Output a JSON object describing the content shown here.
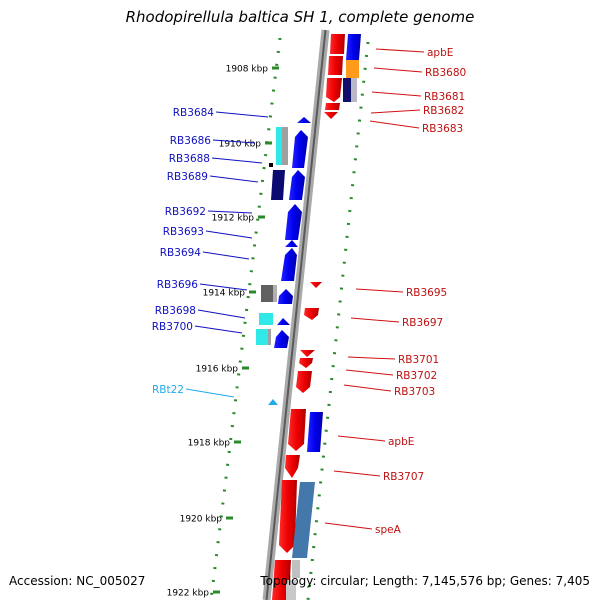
{
  "title": "Rhodopirellula baltica SH 1, complete genome",
  "footer": {
    "accession": "Accession: NC_005027",
    "topology": "Topology: circular; Length: 7,145,576 bp; Genes: 7,405"
  },
  "colors": {
    "minus_strand": "#1010e0",
    "plus_strand": "#e01010",
    "rna": "#22aaee",
    "tick": "#2a8a2a"
  },
  "kbp_ticks": [
    "1908 kbp",
    "1910 kbp",
    "1912 kbp",
    "1914 kbp",
    "1916 kbp",
    "1918 kbp",
    "1920 kbp",
    "1922 kbp"
  ],
  "left_genes": [
    "RB3684",
    "RB3686",
    "RB3688",
    "RB3689",
    "RB3692",
    "RB3693",
    "RB3694",
    "RB3696",
    "RB3698",
    "RB3700",
    "RBt22"
  ],
  "right_genes": [
    "apbE",
    "RB3680",
    "RB3681",
    "RB3682",
    "RB3683",
    "RB3695",
    "RB3697",
    "RB3701",
    "RB3702",
    "RB3703",
    "apbE",
    "RB3707",
    "speA"
  ]
}
